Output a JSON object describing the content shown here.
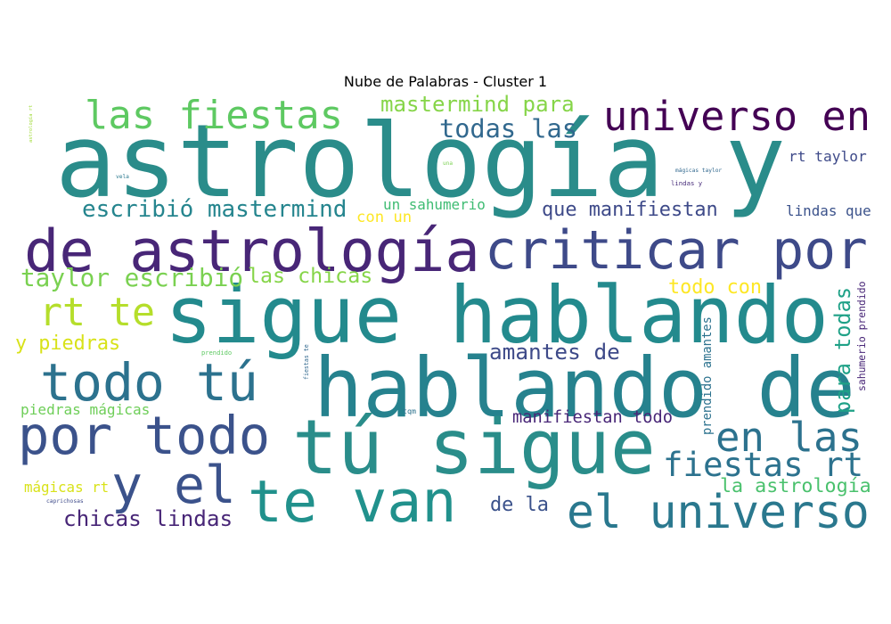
{
  "title": "Nube de Palabras - Cluster 1",
  "words": [
    {
      "text": "astrología y",
      "color": "#2a8c8a"
    },
    {
      "text": "sigue hablando",
      "color": "#238a8d"
    },
    {
      "text": "hablando de",
      "color": "#26828e"
    },
    {
      "text": "tú sigue",
      "color": "#2a8d8a"
    },
    {
      "text": "de astrología",
      "color": "#482677"
    },
    {
      "text": "criticar por",
      "color": "#3e4a89"
    },
    {
      "text": "universo en",
      "color": "#440154"
    },
    {
      "text": "todo tú",
      "color": "#2c728e"
    },
    {
      "text": "por todo",
      "color": "#3b528b"
    },
    {
      "text": "las fiestas",
      "color": "#5ec962"
    },
    {
      "text": "te van",
      "color": "#21918c"
    },
    {
      "text": "y el",
      "color": "#3b528b"
    },
    {
      "text": "el universo",
      "color": "#2a788e"
    },
    {
      "text": "en las",
      "color": "#2c728e"
    },
    {
      "text": "fiestas rt",
      "color": "#2c728e"
    },
    {
      "text": "rt te",
      "color": "#b5de2b"
    },
    {
      "text": "escribió mastermind",
      "color": "#25858e"
    },
    {
      "text": "taylor escribió",
      "color": "#7ad151"
    },
    {
      "text": "mastermind para",
      "color": "#86d549"
    },
    {
      "text": "todas las",
      "color": "#31688e"
    },
    {
      "text": "rt taylor",
      "color": "#3e4a89"
    },
    {
      "text": "que manifiestan",
      "color": "#3e4a89"
    },
    {
      "text": "lindas que",
      "color": "#3b528b"
    },
    {
      "text": "un sahumerio",
      "color": "#3fbc73"
    },
    {
      "text": "con un",
      "color": "#fde725"
    },
    {
      "text": "las chicas",
      "color": "#86d549"
    },
    {
      "text": "todo con",
      "color": "#fde725"
    },
    {
      "text": "y piedras",
      "color": "#d8e219"
    },
    {
      "text": "amantes de",
      "color": "#3e4a89"
    },
    {
      "text": "para todas",
      "color": "#1fa187"
    },
    {
      "text": "sahumerio prendido",
      "color": "#482677"
    },
    {
      "text": "prendido amantes",
      "color": "#2c728e"
    },
    {
      "text": "piedras mágicas",
      "color": "#6ece58"
    },
    {
      "text": "manifiestan todo",
      "color": "#482677"
    },
    {
      "text": "mágicas rt",
      "color": "#d8e219"
    },
    {
      "text": "la astrología",
      "color": "#4ac16d"
    },
    {
      "text": "chicas lindas",
      "color": "#482677"
    },
    {
      "text": "de la",
      "color": "#3b528b"
    },
    {
      "text": "astrología rt",
      "color": "#a0da39"
    },
    {
      "text": "vela",
      "color": "#2a788e"
    },
    {
      "text": "una",
      "color": "#7ad151"
    },
    {
      "text": "mágicas taylor",
      "color": "#31688e"
    },
    {
      "text": "lindas y",
      "color": "#472c7a"
    },
    {
      "text": "prendido",
      "color": "#5ec962"
    },
    {
      "text": "fiestas te",
      "color": "#31688e"
    },
    {
      "text": "tqm",
      "color": "#2c728e"
    },
    {
      "text": "caprichosas",
      "color": "#3e4a89"
    }
  ]
}
